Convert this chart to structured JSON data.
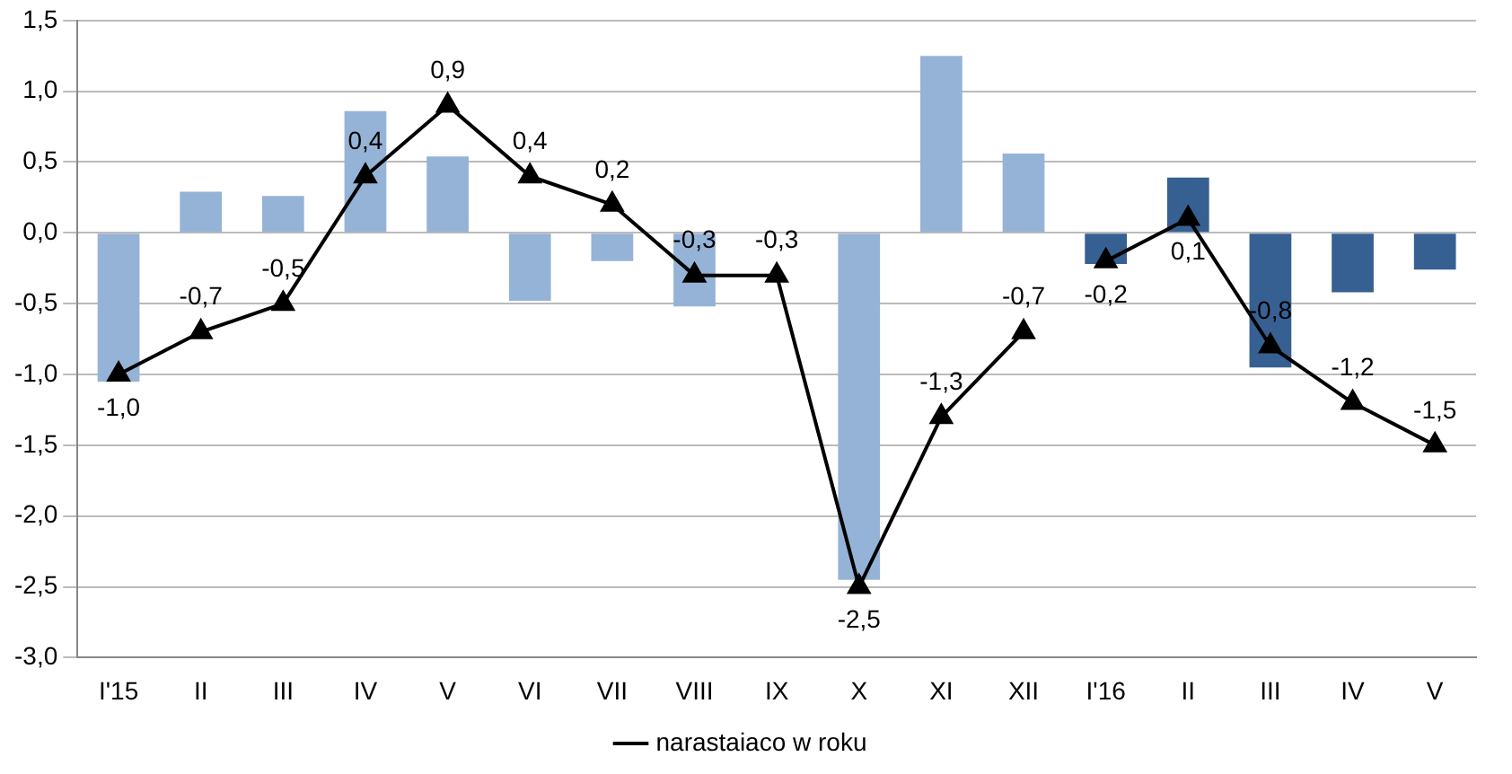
{
  "chart_data": {
    "type": "bar",
    "categories": [
      "I'15",
      "II",
      "III",
      "IV",
      "V",
      "VI",
      "VII",
      "VIII",
      "IX",
      "X",
      "XI",
      "XII",
      "I'16",
      "II",
      "III",
      "IV",
      "V"
    ],
    "series": [
      {
        "colors": [
          "#95b3d7",
          "#95b3d7",
          "#95b3d7",
          "#95b3d7",
          "#95b3d7",
          "#95b3d7",
          "#95b3d7",
          "#95b3d7",
          "#95b3d7",
          "#95b3d7",
          "#95b3d7",
          "#95b3d7",
          "#376092",
          "#376092",
          "#376092",
          "#376092",
          "#376092"
        ],
        "values": [
          -1.05,
          0.29,
          0.26,
          0.86,
          0.54,
          -0.48,
          -0.2,
          -0.52,
          null,
          -2.45,
          1.25,
          0.56,
          -0.22,
          0.39,
          -0.95,
          -0.42,
          -0.26
        ]
      },
      {
        "type": "line",
        "name": "narastaiaco w roku",
        "color": "#000000",
        "values": [
          -1.0,
          -0.7,
          -0.5,
          0.4,
          0.9,
          0.4,
          0.2,
          -0.3,
          -0.3,
          -2.5,
          -1.3,
          -0.7,
          null,
          null,
          null,
          null,
          null
        ],
        "value_labels": [
          "-1,0",
          "-0,7",
          "-0,5",
          "0,4",
          "0,9",
          "0,4",
          "0,2",
          "-0,3",
          "-0,3",
          "-2,5",
          "-1,3",
          "-0,7",
          null,
          null,
          null,
          null,
          null
        ]
      },
      {
        "type": "line",
        "color": "#000000",
        "values": [
          null,
          null,
          null,
          null,
          null,
          null,
          null,
          null,
          null,
          null,
          null,
          null,
          -0.2,
          0.1,
          -0.8,
          -1.2,
          -1.5
        ],
        "value_labels": [
          null,
          null,
          null,
          null,
          null,
          null,
          null,
          null,
          null,
          null,
          null,
          null,
          "-0,2",
          "0,1",
          "-0,8",
          "-1,2",
          "-1,5"
        ]
      }
    ],
    "ylim": [
      -3.0,
      1.5
    ],
    "yticks": [
      {
        "value": -3.0,
        "label": "-3,0"
      },
      {
        "value": -2.5,
        "label": "-2,5"
      },
      {
        "value": -2.0,
        "label": "-2,0"
      },
      {
        "value": -1.5,
        "label": "-1,5"
      },
      {
        "value": -1.0,
        "label": "-1,0"
      },
      {
        "value": -0.5,
        "label": "-0,5"
      },
      {
        "value": 0,
        "label": "0,0"
      },
      {
        "value": 0.5,
        "label": "0,5"
      },
      {
        "value": 1.0,
        "label": "1,0"
      },
      {
        "value": 1.5,
        "label": "1,5"
      }
    ],
    "grid": "y",
    "legend": "bottom",
    "marker": "triangle",
    "line_style": "solid"
  }
}
